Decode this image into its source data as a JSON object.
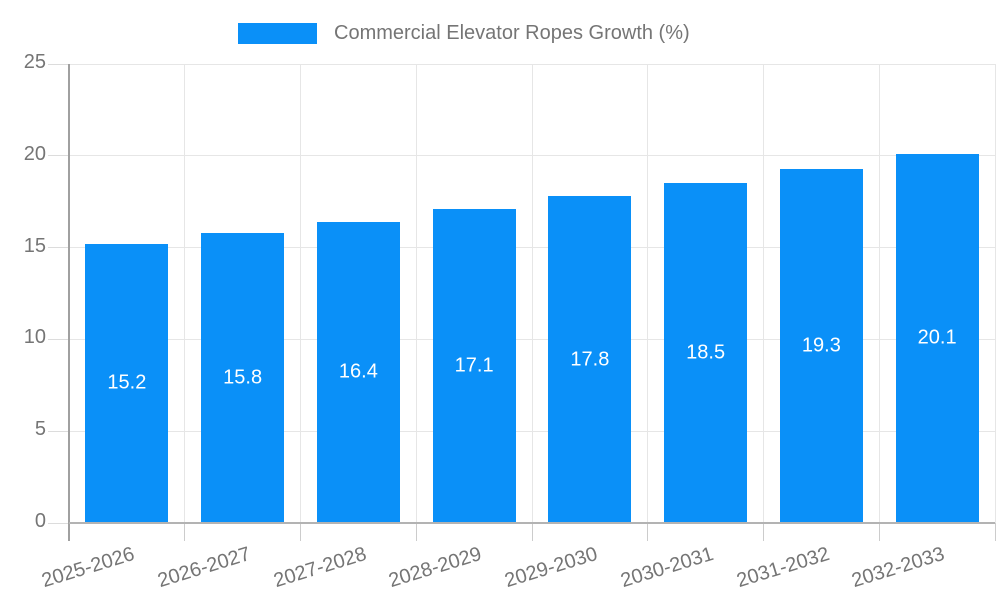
{
  "legend": {
    "label": "Commercial Elevator Ropes Growth (%)"
  },
  "chart_data": {
    "type": "bar",
    "title": "Commercial Elevator Ropes Growth (%)",
    "categories": [
      "2025-2026",
      "2026-2027",
      "2027-2028",
      "2028-2029",
      "2029-2030",
      "2030-2031",
      "2031-2032",
      "2032-2033"
    ],
    "values": [
      15.2,
      15.8,
      16.4,
      17.1,
      17.8,
      18.5,
      19.3,
      20.1
    ],
    "value_labels": [
      "15.2",
      "15.8",
      "16.4",
      "17.1",
      "17.8",
      "18.5",
      "19.3",
      "20.1"
    ],
    "xlabel": "",
    "ylabel": "",
    "ylim": [
      0,
      25
    ],
    "yticks": [
      0,
      5,
      10,
      15,
      20,
      25
    ],
    "grid": true,
    "legend_position": "top",
    "x_label_rotation_deg": -17
  },
  "colors": {
    "background": "#ffffff",
    "bar": "#0a90f8",
    "bar_value_text": "#ffffff",
    "axis_text": "#757575",
    "gridline": "#e6e6e6",
    "y_axis_line": "#a0a0a0",
    "x_axis_line": "#b3b3b3",
    "tick_mark": "#cccccc"
  }
}
